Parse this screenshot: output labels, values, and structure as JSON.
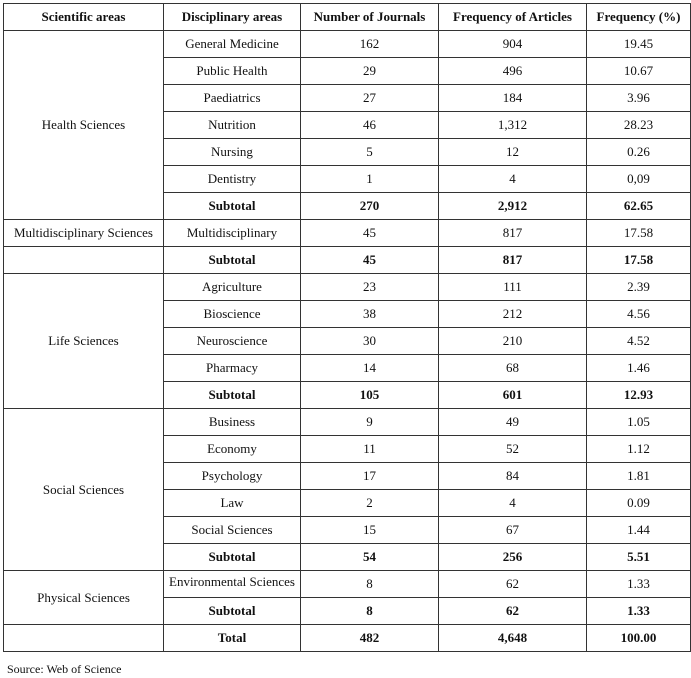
{
  "headers": [
    "Scientific areas",
    "Disciplinary areas",
    "Number of Journals",
    "Frequency of Articles",
    "Frequency (%)"
  ],
  "groups": [
    {
      "area": "Health Sciences",
      "rows": [
        [
          "General Medicine",
          "162",
          "904",
          "19.45"
        ],
        [
          "Public Health",
          "29",
          "496",
          "10.67"
        ],
        [
          "Paediatrics",
          "27",
          "184",
          "3.96"
        ],
        [
          "Nutrition",
          "46",
          "1,312",
          "28.23"
        ],
        [
          "Nursing",
          "5",
          "12",
          "0.26"
        ],
        [
          "Dentistry",
          "1",
          "4",
          "0,09"
        ]
      ],
      "subtotal": [
        "Subtotal",
        "270",
        "2,912",
        "62.65"
      ]
    },
    {
      "area": "Multidisciplinary Sciences",
      "rows": [
        [
          "Multidisciplinary",
          "45",
          "817",
          "17.58"
        ]
      ],
      "subtotal": [
        "Subtotal",
        "45",
        "817",
        "17.58"
      ],
      "subtotal_separate": true
    },
    {
      "area": "Life Sciences",
      "rows": [
        [
          "Agriculture",
          "23",
          "111",
          "2.39"
        ],
        [
          "Bioscience",
          "38",
          "212",
          "4.56"
        ],
        [
          "Neuroscience",
          "30",
          "210",
          "4.52"
        ],
        [
          "Pharmacy",
          "14",
          "68",
          "1.46"
        ]
      ],
      "subtotal": [
        "Subtotal",
        "105",
        "601",
        "12.93"
      ]
    },
    {
      "area": "Social Sciences",
      "rows": [
        [
          "Business",
          "9",
          "49",
          "1.05"
        ],
        [
          "Economy",
          "11",
          "52",
          "1.12"
        ],
        [
          "Psychology",
          "17",
          "84",
          "1.81"
        ],
        [
          "Law",
          "2",
          "4",
          "0.09"
        ],
        [
          "Social Sciences",
          "15",
          "67",
          "1.44"
        ]
      ],
      "subtotal": [
        "Subtotal",
        "54",
        "256",
        "5.51"
      ]
    },
    {
      "area": "Physical Sciences",
      "rows": [
        [
          "Environmental Sciences",
          "8",
          "62",
          "1.33"
        ]
      ],
      "subtotal": [
        "Subtotal",
        "8",
        "62",
        "1.33"
      ]
    }
  ],
  "total": [
    "Total",
    "482",
    "4,648",
    "100.00"
  ],
  "source": "Source: Web of Science"
}
